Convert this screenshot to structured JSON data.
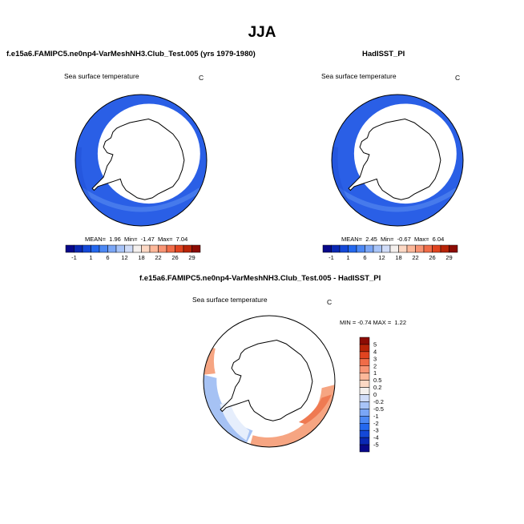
{
  "figure": {
    "title": "JJA"
  },
  "panels": [
    {
      "title": "f.e15a6.FAMIPC5.ne0np4-VarMeshNH3.Club_Test.005 (yrs 1979-1980)",
      "variable": "Sea surface temperature",
      "units": "C",
      "stats": {
        "mean_label": "MEAN=",
        "mean": "1.96",
        "min_label": "Min=",
        "min": "-1.47",
        "max_label": "Max=",
        "max": "7.04"
      }
    },
    {
      "title": "HadISST_PI",
      "variable": "Sea surface temperature",
      "units": "C",
      "stats": {
        "mean_label": "MEAN=",
        "mean": "2.45",
        "min_label": "Min=",
        "min": "-0.67",
        "max_label": "Max=",
        "max": "6.04"
      }
    },
    {
      "title": "f.e15a6.FAMIPC5.ne0np4-VarMeshNH3.Club_Test.005 - HadISST_PI",
      "variable": "Sea surface temperature",
      "units": "C",
      "stats": {
        "min_label": "MIN =",
        "min": "-0.74",
        "max_label": "MAX =",
        "max": "1.22"
      }
    }
  ],
  "colorbar_abs": {
    "labels": [
      "-1",
      "1",
      "6",
      "12",
      "18",
      "22",
      "26",
      "29"
    ],
    "colors": [
      "#08088a",
      "#0a28b4",
      "#1448d8",
      "#2468ee",
      "#4c88f4",
      "#7aa6f6",
      "#a8c4f8",
      "#d0dcf8",
      "#f4f0ee",
      "#fcd8c4",
      "#fcb89a",
      "#f89474",
      "#f06c48",
      "#e04420",
      "#b82408",
      "#8c0c04"
    ]
  },
  "colorbar_diff": {
    "labels": [
      "5",
      "4",
      "3",
      "2",
      "1",
      "0.5",
      "0.2",
      "0",
      "-0.2",
      "-0.5",
      "-1",
      "-2",
      "-3",
      "-4",
      "-5"
    ],
    "colors": [
      "#8c0c04",
      "#b82408",
      "#e04420",
      "#f06c48",
      "#f89474",
      "#fcb89a",
      "#fcd8c4",
      "#f4f0ee",
      "#d0dcf8",
      "#a8c4f8",
      "#7aa6f6",
      "#4c88f4",
      "#2468ee",
      "#1448d8",
      "#0a28b4",
      "#08088a"
    ]
  },
  "palette": {
    "ocean_blue": "#2a5fe6",
    "ocean_blue_dark": "#1f4fd6",
    "ocean_blue_light": "#5a8cf0",
    "diff_warm": "#f6a582",
    "diff_warm_strong": "#ef7a52",
    "diff_cool": "#a6c2f4",
    "diff_pale": "#e6eefc"
  }
}
